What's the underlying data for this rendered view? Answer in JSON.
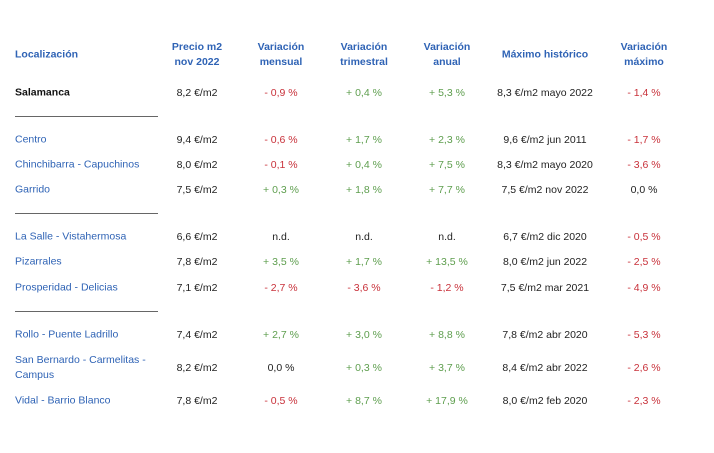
{
  "headers": [
    "Localización",
    "Precio m2\nnov 2022",
    "Variación\nmensual",
    "Variación\ntrimestral",
    "Variación\nanual",
    "Máximo histórico",
    "Variación\nmáximo"
  ],
  "rows": [
    {
      "name": "Salamanca",
      "price": "8,2 €/m2",
      "monthly": "- 0,9 %",
      "quarterly": "+ 0,4 %",
      "annual": "+ 5,3 %",
      "max": "8,3 €/m2 mayo 2022",
      "max_var": "- 1,4 %"
    },
    {
      "name": "Centro",
      "price": "9,4 €/m2",
      "monthly": "- 0,6 %",
      "quarterly": "+ 1,7 %",
      "annual": "+ 2,3 %",
      "max": "9,6 €/m2 jun 2011",
      "max_var": "- 1,7 %"
    },
    {
      "name": "Chinchibarra - Capuchinos",
      "price": "8,0 €/m2",
      "monthly": "- 0,1 %",
      "quarterly": "+ 0,4 %",
      "annual": "+ 7,5 %",
      "max": "8,3 €/m2 mayo 2020",
      "max_var": "- 3,6 %"
    },
    {
      "name": "Garrido",
      "price": "7,5 €/m2",
      "monthly": "+ 0,3 %",
      "quarterly": "+ 1,8 %",
      "annual": "+ 7,7 %",
      "max": "7,5 €/m2 nov 2022",
      "max_var": "0,0 %"
    },
    {
      "name": "La Salle - Vistahermosa",
      "price": "6,6 €/m2",
      "monthly": "n.d.",
      "quarterly": "n.d.",
      "annual": "n.d.",
      "max": "6,7 €/m2 dic 2020",
      "max_var": "- 0,5 %"
    },
    {
      "name": "Pizarrales",
      "price": "7,8 €/m2",
      "monthly": "+ 3,5 %",
      "quarterly": "+ 1,7 %",
      "annual": "+ 13,5 %",
      "max": "8,0 €/m2 jun 2022",
      "max_var": "- 2,5 %"
    },
    {
      "name": "Prosperidad - Delicias",
      "price": "7,1 €/m2",
      "monthly": "- 2,7 %",
      "quarterly": "- 3,6 %",
      "annual": "- 1,2 %",
      "max": "7,5 €/m2 mar 2021",
      "max_var": "- 4,9 %"
    },
    {
      "name": "Rollo - Puente Ladrillo",
      "price": "7,4 €/m2",
      "monthly": "+ 2,7 %",
      "quarterly": "+ 3,0 %",
      "annual": "+ 8,8 %",
      "max": "7,8 €/m2 abr 2020",
      "max_var": "- 5,3 %"
    },
    {
      "name": "San Bernardo - Carmelitas -\nCampus",
      "price": "8,2 €/m2",
      "monthly": "0,0 %",
      "quarterly": "+ 0,3 %",
      "annual": "+ 3,7 %",
      "max": "8,4 €/m2 abr 2022",
      "max_var": "- 2,6 %"
    },
    {
      "name": "Vidal - Barrio Blanco",
      "price": "7,8 €/m2",
      "monthly": "- 0,5 %",
      "quarterly": "+ 8,7 %",
      "annual": "+ 17,9 %",
      "max": "8,0 €/m2 feb 2020",
      "max_var": "- 2,3 %"
    }
  ],
  "colors": {
    "header": "#2f63b5",
    "positive": "#5e9e4e",
    "negative": "#c8313a"
  }
}
